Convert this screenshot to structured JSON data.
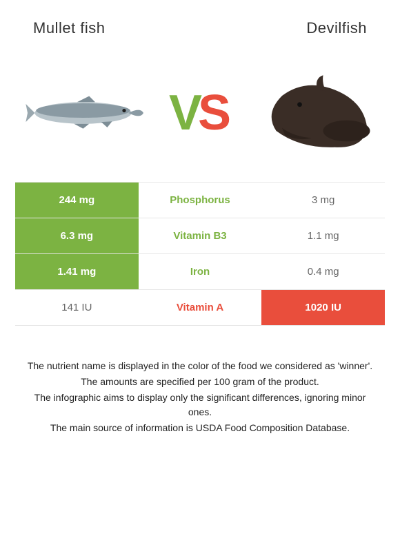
{
  "header": {
    "left": "Mullet fish",
    "right": "Devilfish"
  },
  "vs": {
    "v": "V",
    "s": "S"
  },
  "colors": {
    "left": "#7cb342",
    "right": "#e94e3c",
    "border": "#e6e6e6",
    "text_dark": "#333333",
    "text_muted": "#666666"
  },
  "rows": [
    {
      "left": "244 mg",
      "label": "Phosphorus",
      "right": "3 mg",
      "winner": "left"
    },
    {
      "left": "6.3 mg",
      "label": "Vitamin B3",
      "right": "1.1 mg",
      "winner": "left"
    },
    {
      "left": "1.41 mg",
      "label": "Iron",
      "right": "0.4 mg",
      "winner": "left"
    },
    {
      "left": "141 IU",
      "label": "Vitamin A",
      "right": "1020 IU",
      "winner": "right"
    }
  ],
  "footer": [
    "The nutrient name is displayed in the color of the food we considered as 'winner'.",
    "The amounts are specified per 100 gram of the product.",
    "The infographic aims to display only the significant differences, ignoring minor ones.",
    "The main source of information is USDA Food Composition Database."
  ]
}
